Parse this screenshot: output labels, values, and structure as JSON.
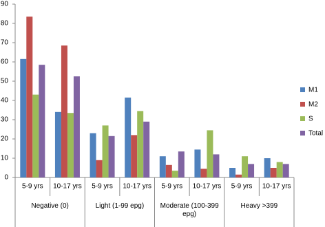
{
  "chart_data": {
    "type": "bar",
    "groups": [
      "Negative (0)",
      "Light (1-99 epg)",
      "Moderate (100-399 epg)",
      "Heavy >399"
    ],
    "categories": [
      "5-9 yrs",
      "10-17 yrs",
      "5-9 yrs",
      "10-17 yrs",
      "5-9 yrs",
      "10-17 yrs",
      "5-9 yrs",
      "10-17 yrs"
    ],
    "series": [
      {
        "name": "M1",
        "color": "#4f81bd",
        "values": [
          61.5,
          34,
          23,
          41.5,
          11,
          14.5,
          5,
          10
        ]
      },
      {
        "name": "M2",
        "color": "#c0504d",
        "values": [
          83.5,
          68.5,
          9,
          22,
          6.5,
          4.5,
          1.5,
          5
        ]
      },
      {
        "name": "S",
        "color": "#9bbb59",
        "values": [
          43,
          33.5,
          27,
          34.5,
          3.5,
          24.5,
          11,
          8
        ]
      },
      {
        "name": "Total",
        "color": "#8064a2",
        "values": [
          58.5,
          52.5,
          21.5,
          29,
          13.5,
          12,
          7,
          7
        ]
      }
    ],
    "ylim": [
      0,
      90
    ],
    "yticks": [
      0,
      10,
      20,
      30,
      40,
      50,
      60,
      70,
      80,
      90
    ],
    "grid": false,
    "legend": "right"
  }
}
